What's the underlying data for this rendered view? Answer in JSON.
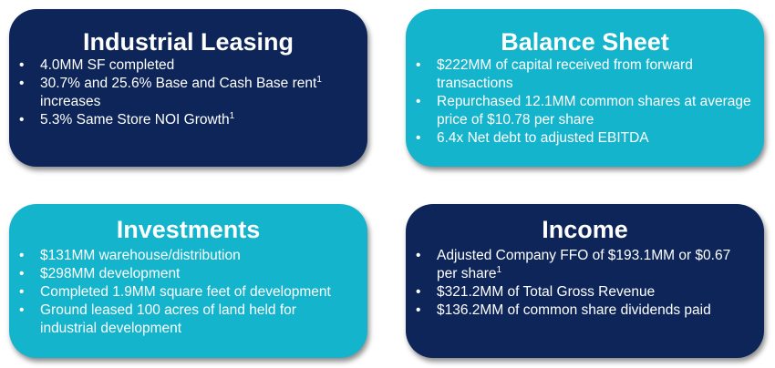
{
  "colors": {
    "dark_card": "#0d2558",
    "teal_card": "#14b4cc",
    "text": "#ffffff"
  },
  "cards": {
    "industrial": {
      "title": "Industrial Leasing",
      "bullets": [
        {
          "text": "4.0MM SF completed",
          "sup": ""
        },
        {
          "text": "30.7% and 25.6% Base and Cash Base rent",
          "sup": "1",
          "cont": "increases"
        },
        {
          "text": "5.3% Same Store NOI Growth",
          "sup": "1"
        }
      ]
    },
    "balance": {
      "title": "Balance Sheet",
      "bullets": [
        {
          "text": "$222MM of capital received from forward transactions"
        },
        {
          "text": "Repurchased 12.1MM common shares at average price of $10.78 per share"
        },
        {
          "text": "6.4x Net debt to adjusted EBITDA"
        }
      ]
    },
    "investments": {
      "title": "Investments",
      "bullets": [
        {
          "text": "$131MM warehouse/distribution"
        },
        {
          "text": "$298MM development"
        },
        {
          "text": "Completed 1.9MM square feet of development"
        },
        {
          "text": "Ground leased 100 acres of land held for industrial development"
        }
      ]
    },
    "income": {
      "title": "Income",
      "bullets": [
        {
          "text": "Adjusted Company FFO of $193.1MM or $0.67 per share",
          "sup": "1"
        },
        {
          "text": "$321.2MM of Total Gross Revenue"
        },
        {
          "text": "$136.2MM of common share dividends paid"
        }
      ]
    }
  },
  "bullet_glyph": "•"
}
